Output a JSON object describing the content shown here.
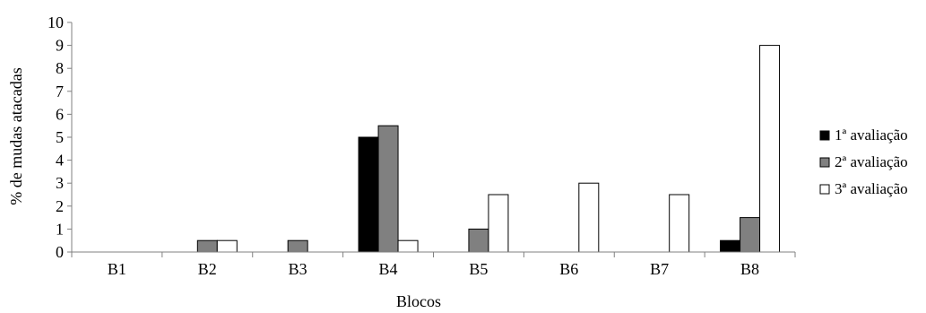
{
  "chart_data": {
    "type": "bar",
    "title": "",
    "xlabel": "Blocos",
    "ylabel": "% de mudas atacadas",
    "categories": [
      "B1",
      "B2",
      "B3",
      "B4",
      "B5",
      "B6",
      "B7",
      "B8"
    ],
    "ylim": [
      0,
      10
    ],
    "yticks": [
      0,
      1,
      2,
      3,
      4,
      5,
      6,
      7,
      8,
      9,
      10
    ],
    "grid": false,
    "legend_position": "right",
    "series": [
      {
        "name": "1ª avaliação",
        "color": "#000000",
        "values": [
          0,
          0,
          0,
          5,
          0,
          0,
          0,
          0.5
        ]
      },
      {
        "name": "2ª avaliação",
        "color": "#808080",
        "values": [
          0,
          0.5,
          0.5,
          5.5,
          1,
          0,
          0,
          1.5
        ]
      },
      {
        "name": "3ª avaliação",
        "color": "#ffffff",
        "values": [
          0,
          0.5,
          0,
          0.5,
          2.5,
          3,
          2.5,
          9
        ]
      }
    ]
  }
}
